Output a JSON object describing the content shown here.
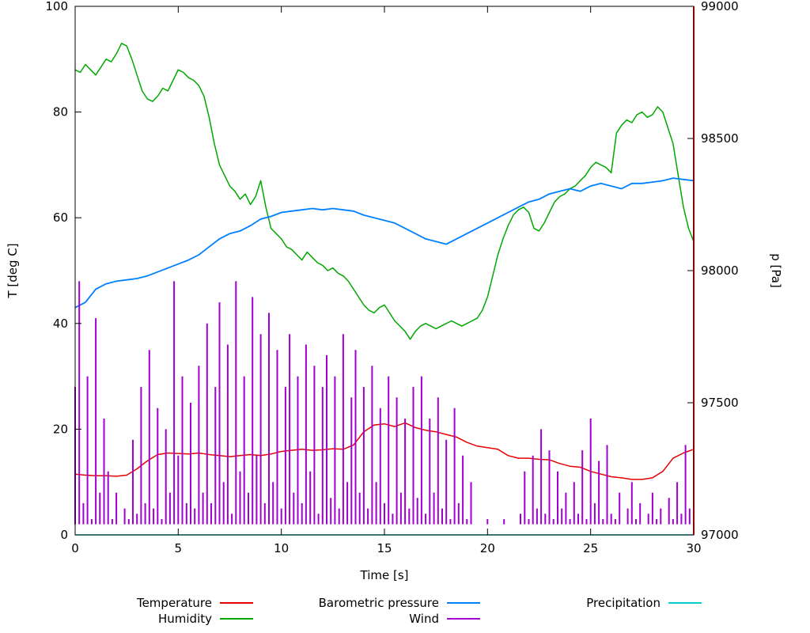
{
  "figure": {
    "xlabel": "Time [s]",
    "ylabel_left": "T [deg C]",
    "ylabel_right": "p [Pa]"
  },
  "chart_data": {
    "type": "line",
    "title": "",
    "xlabel": "Time [s]",
    "ylabel_left": "T [deg C]",
    "ylabel_right": "p [Pa]",
    "grid": false,
    "legend_position": "below-chart",
    "x_range": [
      0,
      30
    ],
    "y_left_range": [
      0,
      100
    ],
    "y_right_range": [
      97000,
      99000
    ],
    "x_ticks": [
      0,
      5,
      10,
      15,
      20,
      25,
      30
    ],
    "y_left_ticks": [
      0,
      20,
      40,
      60,
      80,
      100
    ],
    "y_right_ticks": [
      97000,
      97500,
      98000,
      98500,
      99000
    ],
    "vline": {
      "x": 30,
      "color": "#8b0000",
      "width": 2
    },
    "series": [
      {
        "name": "Temperature",
        "color": "#e60000",
        "axis": "left",
        "style": "line",
        "t_start": 0,
        "t_step": 0.5,
        "values": [
          11.5,
          11.3,
          11.2,
          11.2,
          11.1,
          11.3,
          12.5,
          14.0,
          15.2,
          15.5,
          15.4,
          15.3,
          15.5,
          15.2,
          15.0,
          14.8,
          15.0,
          15.2,
          15.0,
          15.3,
          15.8,
          16.0,
          16.2,
          16.0,
          16.1,
          16.3,
          16.2,
          17.0,
          19.5,
          20.8,
          21.0,
          20.5,
          21.2,
          20.3,
          19.8,
          19.5,
          19.0,
          18.5,
          17.5,
          16.8,
          16.5,
          16.2,
          15.0,
          14.5,
          14.5,
          14.3,
          14.2,
          13.5,
          13.0,
          12.8,
          12.0,
          11.5,
          11.0,
          10.8,
          10.5,
          10.5,
          10.8,
          12.0,
          14.5,
          15.5,
          16.2
        ]
      },
      {
        "name": "Humidity",
        "color": "#00a800",
        "axis": "left",
        "style": "line",
        "t_start": 0,
        "t_step": 0.25,
        "values": [
          88,
          87.5,
          89,
          88,
          87,
          88.5,
          90,
          89.5,
          91,
          93,
          92.5,
          90,
          87,
          84,
          82.5,
          82,
          83,
          84.5,
          84,
          86,
          88,
          87.5,
          86.5,
          86,
          85,
          83,
          79,
          74,
          70,
          68,
          66,
          65,
          63.5,
          64.5,
          62.5,
          64,
          67,
          62,
          58,
          57,
          56,
          54.5,
          54,
          53,
          52,
          53.5,
          52.5,
          51.5,
          51,
          50,
          50.5,
          49.5,
          49,
          48,
          46.5,
          45,
          43.5,
          42.5,
          42,
          43,
          43.5,
          42,
          40.5,
          39.5,
          38.5,
          37,
          38.5,
          39.5,
          40,
          39.5,
          39,
          39.5,
          40,
          40.5,
          40,
          39.5,
          40,
          40.5,
          41,
          42.5,
          45,
          49,
          53,
          56,
          58.5,
          60.5,
          61.5,
          62,
          61,
          58,
          57.5,
          59,
          61,
          63,
          64,
          64.5,
          65.5,
          66,
          67,
          68,
          69.5,
          70.5,
          70,
          69.5,
          68.5,
          76,
          77.5,
          78.5,
          78,
          79.5,
          80,
          79,
          79.5,
          81,
          80,
          77,
          74,
          68,
          62,
          58,
          55.5
        ]
      },
      {
        "name": "Barometric pressure",
        "color": "#0080ff",
        "axis": "right",
        "style": "line",
        "t_start": 0,
        "t_step": 0.5,
        "values": [
          97860,
          97880,
          97930,
          97950,
          97960,
          97965,
          97970,
          97980,
          97995,
          98010,
          98025,
          98040,
          98060,
          98090,
          98120,
          98140,
          98150,
          98170,
          98195,
          98205,
          98220,
          98225,
          98230,
          98235,
          98230,
          98235,
          98230,
          98225,
          98210,
          98200,
          98190,
          98180,
          98160,
          98140,
          98120,
          98110,
          98100,
          98120,
          98140,
          98160,
          98180,
          98200,
          98220,
          98240,
          98260,
          98270,
          98290,
          98300,
          98310,
          98300,
          98320,
          98330,
          98320,
          98310,
          98330,
          98330,
          98335,
          98340,
          98350,
          98345,
          98340
        ]
      },
      {
        "name": "Wind",
        "color": "#a000d0",
        "axis": "left",
        "style": "impulses",
        "base": 2,
        "t_start": 0,
        "t_step": 0.2,
        "values": [
          28,
          48,
          6,
          30,
          3,
          41,
          8,
          22,
          12,
          3,
          8,
          2,
          5,
          3,
          18,
          4,
          28,
          6,
          35,
          5,
          24,
          3,
          20,
          8,
          48,
          15,
          30,
          6,
          25,
          5,
          32,
          8,
          40,
          6,
          28,
          44,
          10,
          36,
          4,
          48,
          12,
          30,
          8,
          45,
          15,
          38,
          6,
          42,
          10,
          35,
          5,
          28,
          38,
          8,
          30,
          6,
          36,
          12,
          32,
          4,
          28,
          34,
          7,
          30,
          5,
          38,
          10,
          26,
          35,
          8,
          28,
          5,
          32,
          10,
          24,
          6,
          30,
          4,
          26,
          8,
          22,
          5,
          28,
          7,
          30,
          4,
          22,
          8,
          26,
          5,
          18,
          3,
          24,
          6,
          15,
          3,
          10,
          2,
          2,
          2,
          3,
          2,
          2,
          2,
          3,
          2,
          2,
          2,
          4,
          12,
          3,
          15,
          5,
          20,
          4,
          16,
          3,
          12,
          5,
          8,
          3,
          10,
          4,
          16,
          3,
          22,
          6,
          14,
          3,
          17,
          4,
          3,
          8,
          2,
          5,
          10,
          3,
          6,
          2,
          4,
          8,
          3,
          5,
          2,
          7,
          3,
          10,
          4,
          17,
          5,
          8
        ]
      },
      {
        "name": "Precipitation",
        "color": "#00d0d0",
        "axis": "left",
        "style": "line",
        "t_start": 0,
        "t_step": 30,
        "values": [
          0,
          0
        ]
      }
    ]
  }
}
